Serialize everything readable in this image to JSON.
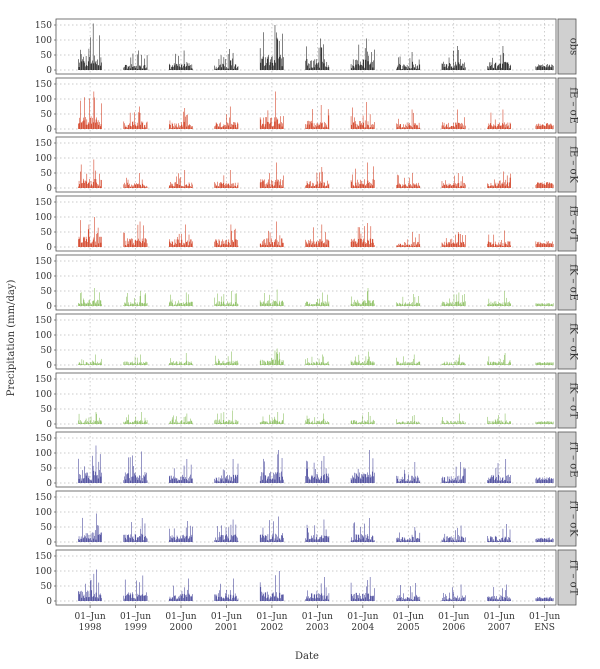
{
  "chart_data": {
    "type": "bar",
    "xlabel": "Date",
    "ylabel": "Precipitation (mm/day)",
    "ylim": [
      0,
      160
    ],
    "y_ticks": [
      0,
      50,
      100,
      150
    ],
    "x_ticks": [
      {
        "top": "01–Jun",
        "bottom": "1998"
      },
      {
        "top": "01–Jun",
        "bottom": "1999"
      },
      {
        "top": "01–Jun",
        "bottom": "2000"
      },
      {
        "top": "01–Jun",
        "bottom": "2001"
      },
      {
        "top": "01–Jun",
        "bottom": "2002"
      },
      {
        "top": "01–Jun",
        "bottom": "2003"
      },
      {
        "top": "01–Jun",
        "bottom": "2004"
      },
      {
        "top": "01–Jun",
        "bottom": "2005"
      },
      {
        "top": "01–Jun",
        "bottom": "2006"
      },
      {
        "top": "01–Jun",
        "bottom": "2007"
      },
      {
        "top": "01–Jun",
        "bottom": "ENS"
      }
    ],
    "grid": true,
    "panels": [
      {
        "label": "obs",
        "color": "#000000",
        "season_peak_values": [
          155,
          65,
          65,
          70,
          150,
          105,
          105,
          60,
          80,
          80,
          20
        ]
      },
      {
        "label": "fE – σE",
        "color": "#cc2200",
        "season_peak_values": [
          125,
          75,
          70,
          75,
          125,
          80,
          90,
          65,
          65,
          65,
          20
        ]
      },
      {
        "label": "fE – σK",
        "color": "#cc2200",
        "season_peak_values": [
          95,
          50,
          60,
          60,
          85,
          70,
          85,
          50,
          50,
          55,
          20
        ]
      },
      {
        "label": "fE – σT",
        "color": "#cc2200",
        "season_peak_values": [
          100,
          85,
          75,
          75,
          85,
          75,
          80,
          50,
          50,
          55,
          20
        ]
      },
      {
        "label": "fK – σE",
        "color": "#7ab648",
        "season_peak_values": [
          60,
          50,
          45,
          50,
          55,
          45,
          60,
          40,
          45,
          50,
          10
        ]
      },
      {
        "label": "fK – σK",
        "color": "#7ab648",
        "season_peak_values": [
          35,
          35,
          40,
          45,
          55,
          35,
          45,
          35,
          35,
          40,
          10
        ]
      },
      {
        "label": "fK – σT",
        "color": "#7ab648",
        "season_peak_values": [
          40,
          40,
          35,
          45,
          40,
          35,
          40,
          30,
          35,
          35,
          10
        ]
      },
      {
        "label": "fT – σE",
        "color": "#2b2b8c",
        "season_peak_values": [
          125,
          105,
          80,
          80,
          110,
          90,
          110,
          70,
          70,
          80,
          20
        ]
      },
      {
        "label": "fT – σK",
        "color": "#2b2b8c",
        "season_peak_values": [
          95,
          80,
          70,
          75,
          85,
          75,
          80,
          50,
          55,
          60,
          15
        ]
      },
      {
        "label": "fT – σT",
        "color": "#2b2b8c",
        "season_peak_values": [
          105,
          85,
          75,
          75,
          100,
          80,
          80,
          60,
          55,
          55,
          15
        ]
      }
    ]
  }
}
